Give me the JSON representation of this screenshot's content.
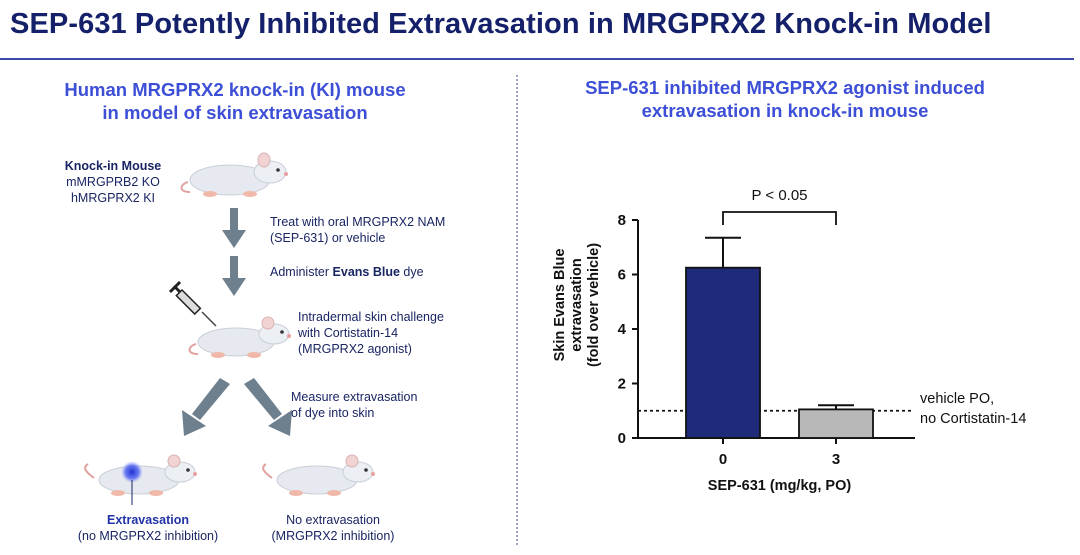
{
  "title": "SEP-631 Potently Inhibited Extravasation in MRGPRX2 Knock-in Model",
  "left_panel": {
    "heading_line1": "Human MRGPRX2 knock-in (KI) mouse",
    "heading_line2": "in model of skin extravasation",
    "mouse_label_title": "Knock-in Mouse",
    "mouse_label_line2": "mMRGPRB2 KO",
    "mouse_label_line3": "hMRGPRX2 KI",
    "step1_line1": "Treat with oral MRGPRX2 NAM",
    "step1_line2": "(SEP-631) or vehicle",
    "step2_prefix": "Administer ",
    "step2_bold": "Evans Blue",
    "step2_suffix": " dye",
    "step3_line1": "Intradermal skin challenge",
    "step3_line2": "with Cortistatin-14",
    "step3_line3": "(MRGPRX2 agonist)",
    "step4_line1": "Measure extravasation",
    "step4_line2": "of dye into skin",
    "outcome_left_title": "Extravasation",
    "outcome_left_sub": "(no MRGPRX2 inhibition)",
    "outcome_right_title": "No extravasation",
    "outcome_right_sub": "(MRGPRX2 inhibition)"
  },
  "right_panel": {
    "heading_line1": "SEP-631 inhibited MRGPRX2 agonist induced",
    "heading_line2": "extravasation in knock-in mouse"
  },
  "colors": {
    "title": "#15206a",
    "heading": "#3d4fd6",
    "bar_vehicle": "#1f2b7a",
    "bar_drug": "#b8b8b8",
    "arrow": "#6e7f8d"
  },
  "chart_data": {
    "type": "bar",
    "categories": [
      "0",
      "3"
    ],
    "values": [
      6.25,
      1.05
    ],
    "errors": [
      1.1,
      0.15
    ],
    "colors": [
      "#1f2b7a",
      "#b8b8b8"
    ],
    "xlabel": "SEP-631 (mg/kg, PO)",
    "ylabel_line1": "Skin Evans Blue",
    "ylabel_line2": "extravasation",
    "ylabel_line3": "(fold over vehicle)",
    "ylim": [
      0,
      8
    ],
    "yticks": [
      "0",
      "2",
      "4",
      "6",
      "8"
    ],
    "significance": "P < 0.05",
    "reference_line": {
      "value": 1.0,
      "label_line1": "vehicle PO,",
      "label_line2": "no Cortistatin-14"
    }
  }
}
